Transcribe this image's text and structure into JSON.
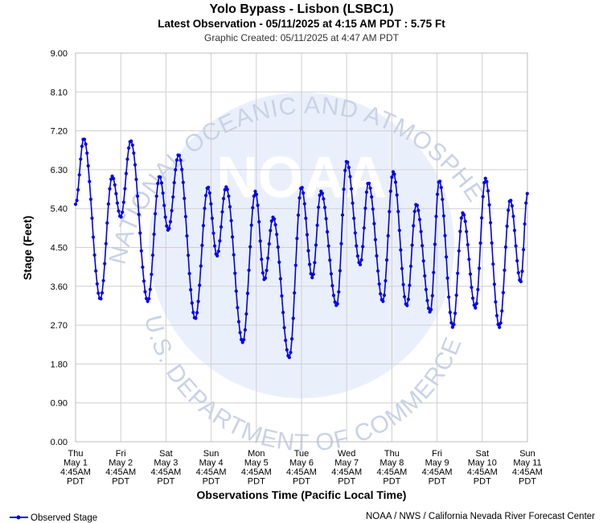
{
  "chart_data": {
    "type": "line",
    "title": "Yolo Bypass - Lisbon (LSBC1)",
    "subtitle": "Latest Observation - 05/11/2025 at 4:15 AM PDT : 5.75 Ft",
    "created": "Graphic Created: 05/11/2025 at 4:47 AM PDT",
    "ylabel": "Stage (Feet)",
    "xlabel": "Observations Time (Pacific Local Time)",
    "ylim": [
      0,
      9
    ],
    "yticks": [
      "0.00",
      "0.90",
      "1.80",
      "2.70",
      "3.60",
      "4.50",
      "5.40",
      "6.30",
      "7.20",
      "8.10",
      "9.00"
    ],
    "xlim_days": [
      0,
      10
    ],
    "xticks": [
      {
        "day": "Thu",
        "date": "May 1",
        "time": "4:45AM",
        "tz": "PDT"
      },
      {
        "day": "Fri",
        "date": "May 2",
        "time": "4:45AM",
        "tz": "PDT"
      },
      {
        "day": "Sat",
        "date": "May 3",
        "time": "4:45AM",
        "tz": "PDT"
      },
      {
        "day": "Sun",
        "date": "May 4",
        "time": "4:45AM",
        "tz": "PDT"
      },
      {
        "day": "Mon",
        "date": "May 5",
        "time": "4:45AM",
        "tz": "PDT"
      },
      {
        "day": "Tue",
        "date": "May 6",
        "time": "4:45AM",
        "tz": "PDT"
      },
      {
        "day": "Wed",
        "date": "May 7",
        "time": "4:45AM",
        "tz": "PDT"
      },
      {
        "day": "Thu",
        "date": "May 8",
        "time": "4:45AM",
        "tz": "PDT"
      },
      {
        "day": "Fri",
        "date": "May 9",
        "time": "4:45AM",
        "tz": "PDT"
      },
      {
        "day": "Sat",
        "date": "May 10",
        "time": "4:45AM",
        "tz": "PDT"
      },
      {
        "day": "Sun",
        "date": "May 11",
        "time": "4:45AM",
        "tz": "PDT"
      }
    ],
    "grid": true,
    "legend_position": "bottom-left",
    "series": [
      {
        "name": "Observed Stage",
        "color": "#0000ee",
        "keypoints": [
          [
            0.0,
            5.5
          ],
          [
            0.18,
            7.02
          ],
          [
            0.55,
            3.3
          ],
          [
            0.81,
            6.15
          ],
          [
            1.0,
            5.2
          ],
          [
            1.22,
            6.97
          ],
          [
            1.6,
            3.25
          ],
          [
            1.86,
            6.15
          ],
          [
            2.05,
            4.9
          ],
          [
            2.28,
            6.65
          ],
          [
            2.65,
            2.85
          ],
          [
            2.93,
            5.9
          ],
          [
            3.13,
            4.3
          ],
          [
            3.33,
            5.9
          ],
          [
            3.7,
            2.3
          ],
          [
            3.98,
            5.8
          ],
          [
            4.18,
            3.75
          ],
          [
            4.37,
            5.2
          ],
          [
            4.73,
            1.95
          ],
          [
            5.0,
            5.9
          ],
          [
            5.24,
            3.8
          ],
          [
            5.43,
            5.8
          ],
          [
            5.78,
            3.15
          ],
          [
            6.0,
            6.5
          ],
          [
            6.3,
            4.1
          ],
          [
            6.48,
            6.0
          ],
          [
            6.8,
            3.25
          ],
          [
            7.03,
            6.25
          ],
          [
            7.33,
            3.15
          ],
          [
            7.54,
            5.5
          ],
          [
            7.85,
            3.0
          ],
          [
            8.05,
            6.05
          ],
          [
            8.35,
            2.65
          ],
          [
            8.57,
            5.3
          ],
          [
            8.85,
            3.1
          ],
          [
            9.07,
            6.1
          ],
          [
            9.38,
            2.65
          ],
          [
            9.62,
            5.6
          ],
          [
            9.85,
            3.7
          ],
          [
            10.0,
            5.75
          ]
        ]
      }
    ]
  },
  "watermark": {
    "logo_text": "NOAA",
    "ring_top": "NATIONAL OCEANIC AND ATMOSPHERIC ADMINISTRATION",
    "ring_bottom": "U.S. DEPARTMENT OF COMMERCE"
  },
  "legend": {
    "label": "Observed Stage"
  },
  "credit": "NOAA / NWS / California Nevada River Forecast Center"
}
